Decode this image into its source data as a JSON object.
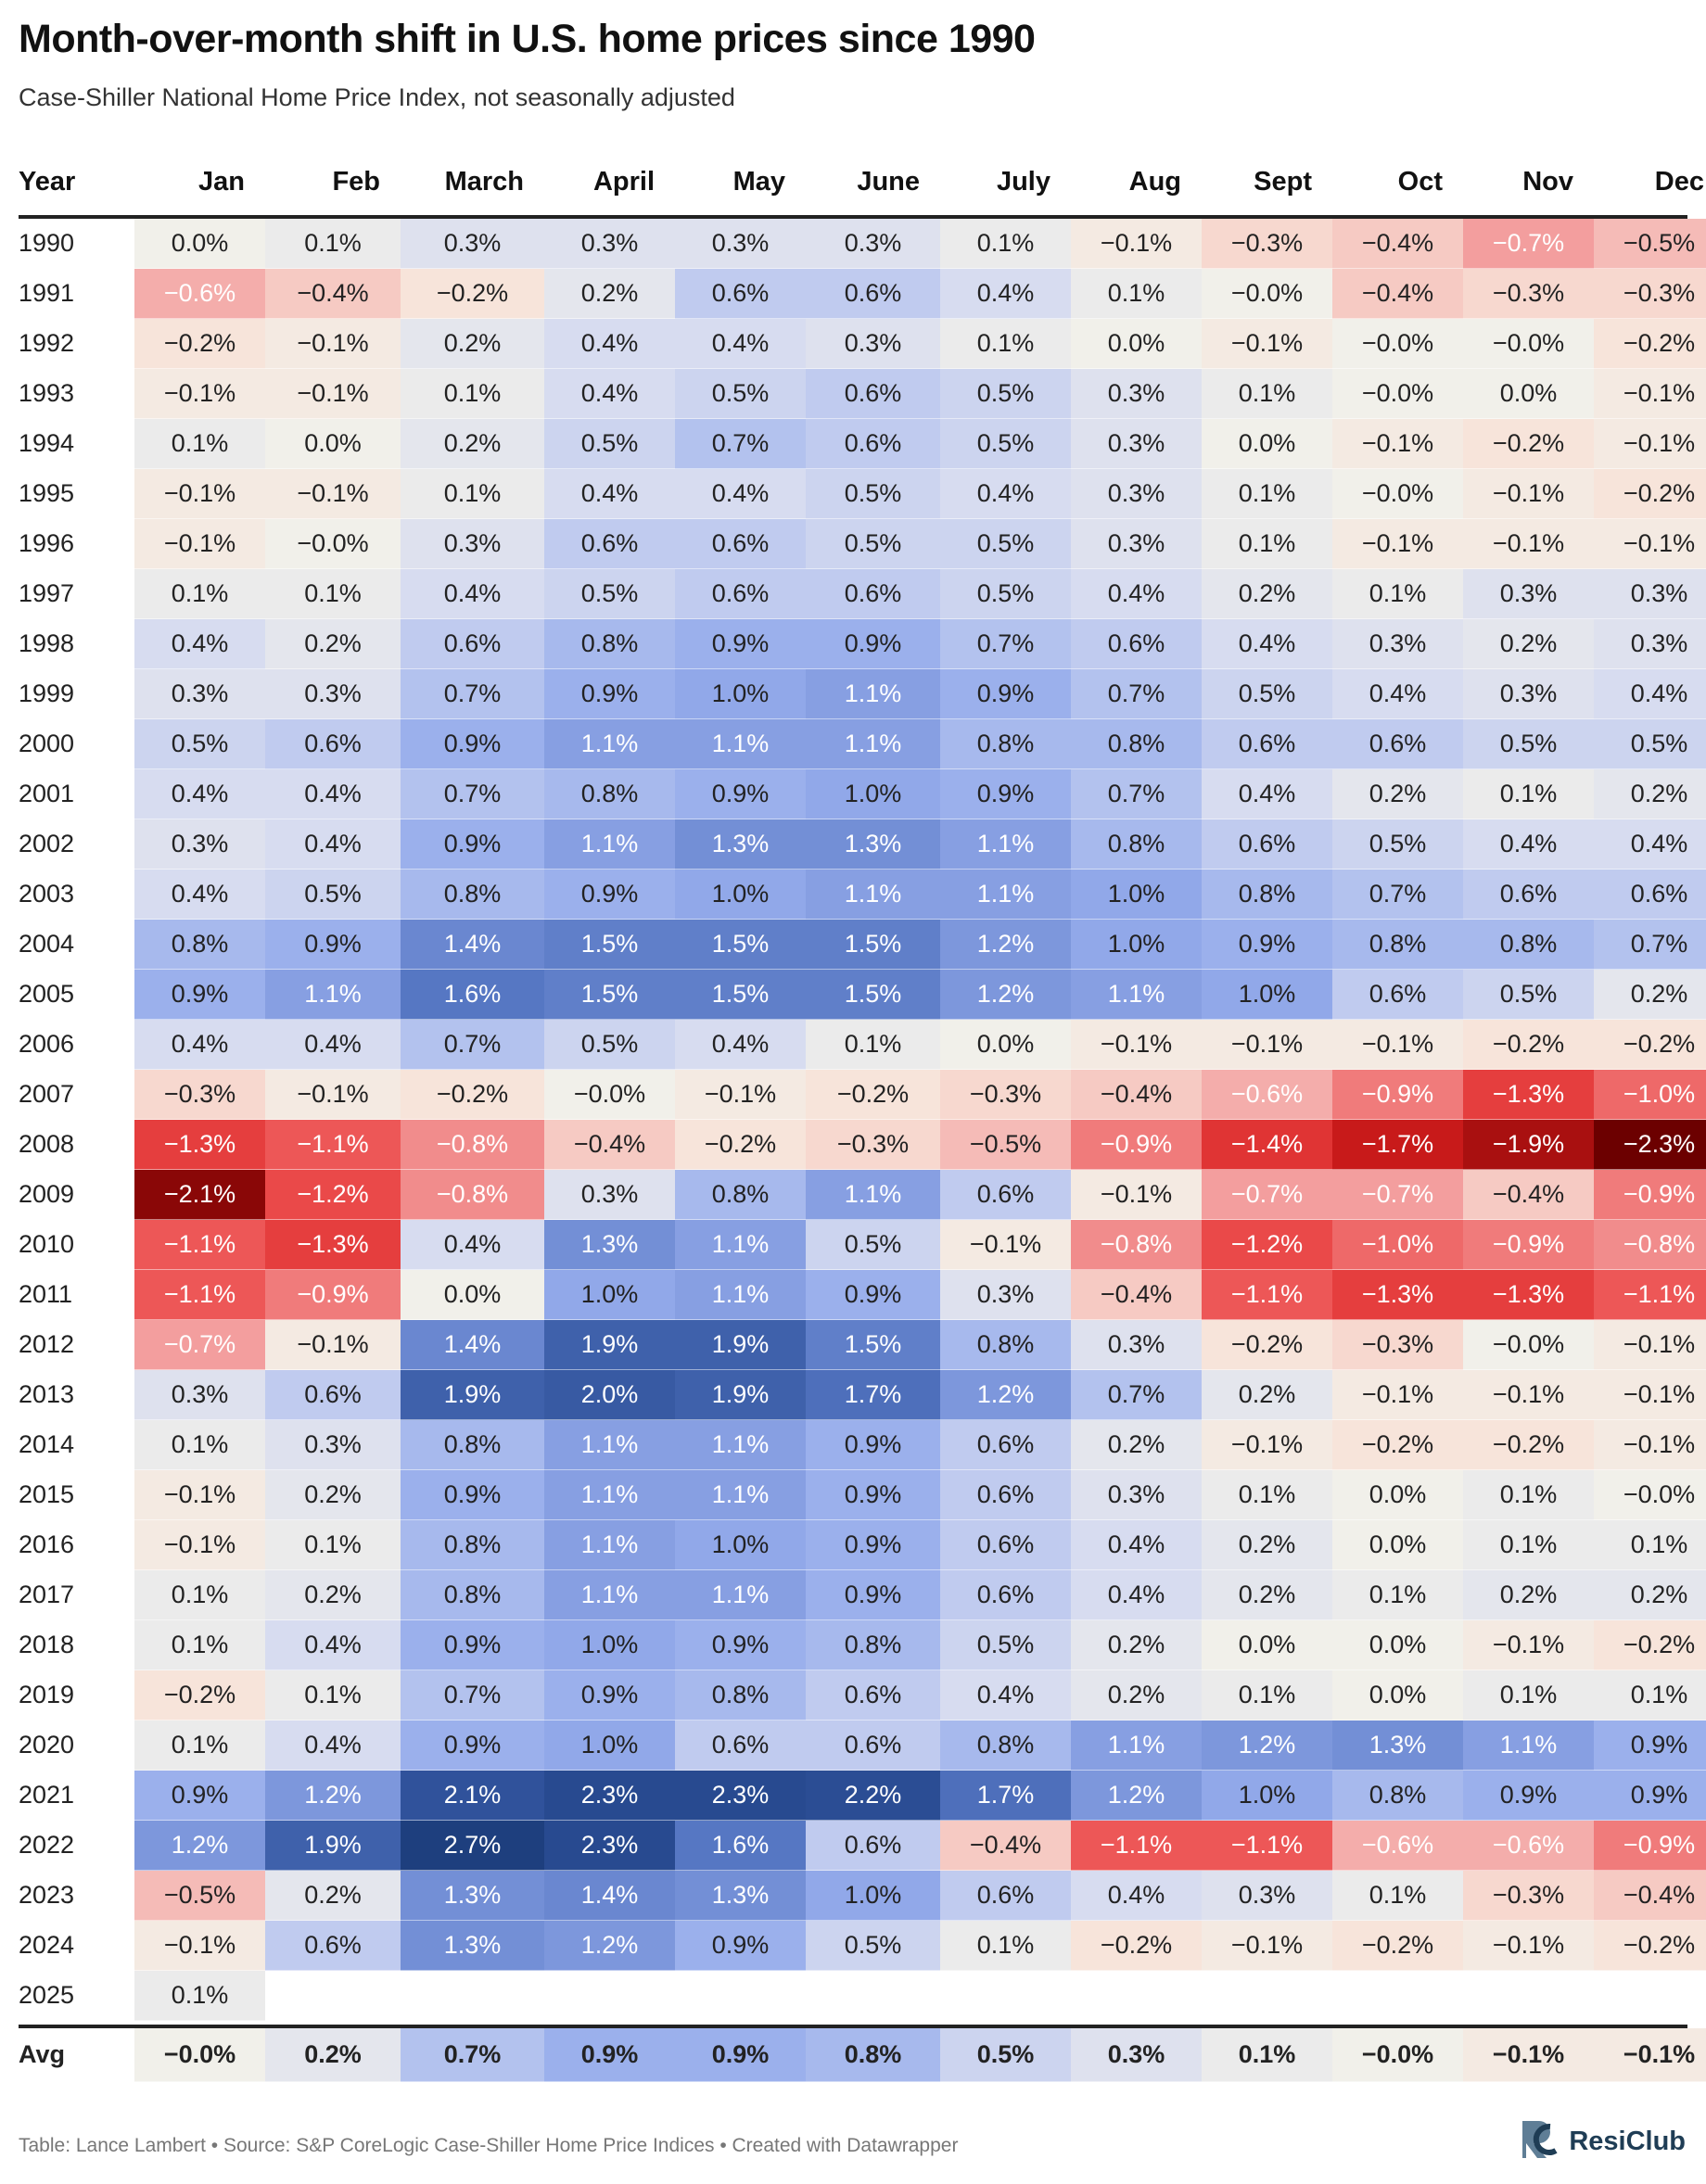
{
  "title": "Month-over-month shift in U.S. home prices since 1990",
  "subtitle": "Case-Shiller National Home Price Index, not seasonally adjusted",
  "footer": "Table: Lance Lambert • Source: S&P CoreLogic Case-Shiller Home Price Indices • Created with Datawrapper",
  "brand": "ResiClub",
  "colors": {
    "positive_max": "#1e3f7e",
    "neutral": "#f2f1ea",
    "negative_max": "#6b0000",
    "brand": "#1f3d55"
  },
  "chart_data": {
    "type": "heatmap",
    "row_header": "Year",
    "columns": [
      "Jan",
      "Feb",
      "March",
      "April",
      "May",
      "June",
      "July",
      "Aug",
      "Sept",
      "Oct",
      "Nov",
      "Dec"
    ],
    "rows": [
      {
        "year": "1990",
        "values": [
          "0.0%",
          "0.1%",
          "0.3%",
          "0.3%",
          "0.3%",
          "0.3%",
          "0.1%",
          "−0.1%",
          "−0.3%",
          "−0.4%",
          "−0.7%",
          "−0.5%"
        ]
      },
      {
        "year": "1991",
        "values": [
          "−0.6%",
          "−0.4%",
          "−0.2%",
          "0.2%",
          "0.6%",
          "0.6%",
          "0.4%",
          "0.1%",
          "−0.0%",
          "−0.4%",
          "−0.3%",
          "−0.3%"
        ]
      },
      {
        "year": "1992",
        "values": [
          "−0.2%",
          "−0.1%",
          "0.2%",
          "0.4%",
          "0.4%",
          "0.3%",
          "0.1%",
          "0.0%",
          "−0.1%",
          "−0.0%",
          "−0.0%",
          "−0.2%"
        ]
      },
      {
        "year": "1993",
        "values": [
          "−0.1%",
          "−0.1%",
          "0.1%",
          "0.4%",
          "0.5%",
          "0.6%",
          "0.5%",
          "0.3%",
          "0.1%",
          "−0.0%",
          "0.0%",
          "−0.1%"
        ]
      },
      {
        "year": "1994",
        "values": [
          "0.1%",
          "0.0%",
          "0.2%",
          "0.5%",
          "0.7%",
          "0.6%",
          "0.5%",
          "0.3%",
          "0.0%",
          "−0.1%",
          "−0.2%",
          "−0.1%"
        ]
      },
      {
        "year": "1995",
        "values": [
          "−0.1%",
          "−0.1%",
          "0.1%",
          "0.4%",
          "0.4%",
          "0.5%",
          "0.4%",
          "0.3%",
          "0.1%",
          "−0.0%",
          "−0.1%",
          "−0.2%"
        ]
      },
      {
        "year": "1996",
        "values": [
          "−0.1%",
          "−0.0%",
          "0.3%",
          "0.6%",
          "0.6%",
          "0.5%",
          "0.5%",
          "0.3%",
          "0.1%",
          "−0.1%",
          "−0.1%",
          "−0.1%"
        ]
      },
      {
        "year": "1997",
        "values": [
          "0.1%",
          "0.1%",
          "0.4%",
          "0.5%",
          "0.6%",
          "0.6%",
          "0.5%",
          "0.4%",
          "0.2%",
          "0.1%",
          "0.3%",
          "0.3%"
        ]
      },
      {
        "year": "1998",
        "values": [
          "0.4%",
          "0.2%",
          "0.6%",
          "0.8%",
          "0.9%",
          "0.9%",
          "0.7%",
          "0.6%",
          "0.4%",
          "0.3%",
          "0.2%",
          "0.3%"
        ]
      },
      {
        "year": "1999",
        "values": [
          "0.3%",
          "0.3%",
          "0.7%",
          "0.9%",
          "1.0%",
          "1.1%",
          "0.9%",
          "0.7%",
          "0.5%",
          "0.4%",
          "0.3%",
          "0.4%"
        ]
      },
      {
        "year": "2000",
        "values": [
          "0.5%",
          "0.6%",
          "0.9%",
          "1.1%",
          "1.1%",
          "1.1%",
          "0.8%",
          "0.8%",
          "0.6%",
          "0.6%",
          "0.5%",
          "0.5%"
        ]
      },
      {
        "year": "2001",
        "values": [
          "0.4%",
          "0.4%",
          "0.7%",
          "0.8%",
          "0.9%",
          "1.0%",
          "0.9%",
          "0.7%",
          "0.4%",
          "0.2%",
          "0.1%",
          "0.2%"
        ]
      },
      {
        "year": "2002",
        "values": [
          "0.3%",
          "0.4%",
          "0.9%",
          "1.1%",
          "1.3%",
          "1.3%",
          "1.1%",
          "0.8%",
          "0.6%",
          "0.5%",
          "0.4%",
          "0.4%"
        ]
      },
      {
        "year": "2003",
        "values": [
          "0.4%",
          "0.5%",
          "0.8%",
          "0.9%",
          "1.0%",
          "1.1%",
          "1.1%",
          "1.0%",
          "0.8%",
          "0.7%",
          "0.6%",
          "0.6%"
        ]
      },
      {
        "year": "2004",
        "values": [
          "0.8%",
          "0.9%",
          "1.4%",
          "1.5%",
          "1.5%",
          "1.5%",
          "1.2%",
          "1.0%",
          "0.9%",
          "0.8%",
          "0.8%",
          "0.7%"
        ]
      },
      {
        "year": "2005",
        "values": [
          "0.9%",
          "1.1%",
          "1.6%",
          "1.5%",
          "1.5%",
          "1.5%",
          "1.2%",
          "1.1%",
          "1.0%",
          "0.6%",
          "0.5%",
          "0.2%"
        ]
      },
      {
        "year": "2006",
        "values": [
          "0.4%",
          "0.4%",
          "0.7%",
          "0.5%",
          "0.4%",
          "0.1%",
          "0.0%",
          "−0.1%",
          "−0.1%",
          "−0.1%",
          "−0.2%",
          "−0.2%"
        ]
      },
      {
        "year": "2007",
        "values": [
          "−0.3%",
          "−0.1%",
          "−0.2%",
          "−0.0%",
          "−0.1%",
          "−0.2%",
          "−0.3%",
          "−0.4%",
          "−0.6%",
          "−0.9%",
          "−1.3%",
          "−1.0%"
        ]
      },
      {
        "year": "2008",
        "values": [
          "−1.3%",
          "−1.1%",
          "−0.8%",
          "−0.4%",
          "−0.2%",
          "−0.3%",
          "−0.5%",
          "−0.9%",
          "−1.4%",
          "−1.7%",
          "−1.9%",
          "−2.3%"
        ]
      },
      {
        "year": "2009",
        "values": [
          "−2.1%",
          "−1.2%",
          "−0.8%",
          "0.3%",
          "0.8%",
          "1.1%",
          "0.6%",
          "−0.1%",
          "−0.7%",
          "−0.7%",
          "−0.4%",
          "−0.9%"
        ]
      },
      {
        "year": "2010",
        "values": [
          "−1.1%",
          "−1.3%",
          "0.4%",
          "1.3%",
          "1.1%",
          "0.5%",
          "−0.1%",
          "−0.8%",
          "−1.2%",
          "−1.0%",
          "−0.9%",
          "−0.8%"
        ]
      },
      {
        "year": "2011",
        "values": [
          "−1.1%",
          "−0.9%",
          "0.0%",
          "1.0%",
          "1.1%",
          "0.9%",
          "0.3%",
          "−0.4%",
          "−1.1%",
          "−1.3%",
          "−1.3%",
          "−1.1%"
        ]
      },
      {
        "year": "2012",
        "values": [
          "−0.7%",
          "−0.1%",
          "1.4%",
          "1.9%",
          "1.9%",
          "1.5%",
          "0.8%",
          "0.3%",
          "−0.2%",
          "−0.3%",
          "−0.0%",
          "−0.1%"
        ]
      },
      {
        "year": "2013",
        "values": [
          "0.3%",
          "0.6%",
          "1.9%",
          "2.0%",
          "1.9%",
          "1.7%",
          "1.2%",
          "0.7%",
          "0.2%",
          "−0.1%",
          "−0.1%",
          "−0.1%"
        ]
      },
      {
        "year": "2014",
        "values": [
          "0.1%",
          "0.3%",
          "0.8%",
          "1.1%",
          "1.1%",
          "0.9%",
          "0.6%",
          "0.2%",
          "−0.1%",
          "−0.2%",
          "−0.2%",
          "−0.1%"
        ]
      },
      {
        "year": "2015",
        "values": [
          "−0.1%",
          "0.2%",
          "0.9%",
          "1.1%",
          "1.1%",
          "0.9%",
          "0.6%",
          "0.3%",
          "0.1%",
          "0.0%",
          "0.1%",
          "−0.0%"
        ]
      },
      {
        "year": "2016",
        "values": [
          "−0.1%",
          "0.1%",
          "0.8%",
          "1.1%",
          "1.0%",
          "0.9%",
          "0.6%",
          "0.4%",
          "0.2%",
          "0.0%",
          "0.1%",
          "0.1%"
        ]
      },
      {
        "year": "2017",
        "values": [
          "0.1%",
          "0.2%",
          "0.8%",
          "1.1%",
          "1.1%",
          "0.9%",
          "0.6%",
          "0.4%",
          "0.2%",
          "0.1%",
          "0.2%",
          "0.2%"
        ]
      },
      {
        "year": "2018",
        "values": [
          "0.1%",
          "0.4%",
          "0.9%",
          "1.0%",
          "0.9%",
          "0.8%",
          "0.5%",
          "0.2%",
          "0.0%",
          "0.0%",
          "−0.1%",
          "−0.2%"
        ]
      },
      {
        "year": "2019",
        "values": [
          "−0.2%",
          "0.1%",
          "0.7%",
          "0.9%",
          "0.8%",
          "0.6%",
          "0.4%",
          "0.2%",
          "0.1%",
          "0.0%",
          "0.1%",
          "0.1%"
        ]
      },
      {
        "year": "2020",
        "values": [
          "0.1%",
          "0.4%",
          "0.9%",
          "1.0%",
          "0.6%",
          "0.6%",
          "0.8%",
          "1.1%",
          "1.2%",
          "1.3%",
          "1.1%",
          "0.9%"
        ]
      },
      {
        "year": "2021",
        "values": [
          "0.9%",
          "1.2%",
          "2.1%",
          "2.3%",
          "2.3%",
          "2.2%",
          "1.7%",
          "1.2%",
          "1.0%",
          "0.8%",
          "0.9%",
          "0.9%"
        ]
      },
      {
        "year": "2022",
        "values": [
          "1.2%",
          "1.9%",
          "2.7%",
          "2.3%",
          "1.6%",
          "0.6%",
          "−0.4%",
          "−1.1%",
          "−1.1%",
          "−0.6%",
          "−0.6%",
          "−0.9%"
        ]
      },
      {
        "year": "2023",
        "values": [
          "−0.5%",
          "0.2%",
          "1.3%",
          "1.4%",
          "1.3%",
          "1.0%",
          "0.6%",
          "0.4%",
          "0.3%",
          "0.1%",
          "−0.3%",
          "−0.4%"
        ]
      },
      {
        "year": "2024",
        "values": [
          "−0.1%",
          "0.6%",
          "1.3%",
          "1.2%",
          "0.9%",
          "0.5%",
          "0.1%",
          "−0.2%",
          "−0.1%",
          "−0.2%",
          "−0.1%",
          "−0.2%"
        ]
      },
      {
        "year": "2025",
        "values": [
          "0.1%"
        ]
      }
    ],
    "average": {
      "label": "Avg",
      "values": [
        "−0.0%",
        "0.2%",
        "0.7%",
        "0.9%",
        "0.9%",
        "0.8%",
        "0.5%",
        "0.3%",
        "0.1%",
        "−0.0%",
        "−0.1%",
        "−0.1%"
      ]
    },
    "color_scale": {
      "min": -2.3,
      "mid": 0,
      "max": 2.7,
      "negative_color": "red",
      "positive_color": "blue"
    }
  }
}
